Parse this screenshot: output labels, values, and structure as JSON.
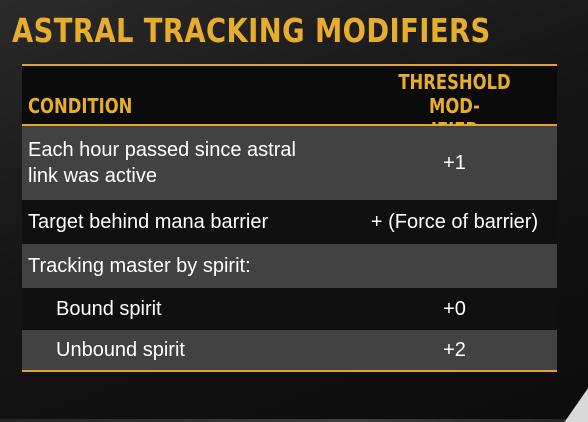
{
  "title": "ASTRAL TRACKING MODIFIERS",
  "columns": {
    "condition": "CONDITION",
    "modifier_line1": "THRESHOLD MOD-",
    "modifier_line2": "IFIER"
  },
  "rows": [
    {
      "condition_line1": "Each hour passed since astral",
      "condition_line2": "link was active",
      "modifier": "+1"
    },
    {
      "condition": "Target behind mana barrier",
      "modifier": "+ (Force of barrier)"
    },
    {
      "condition": "Tracking master by spirit:",
      "modifier": ""
    },
    {
      "condition": "Bound spirit",
      "modifier": "+0"
    },
    {
      "condition": "Unbound spirit",
      "modifier": "+2"
    }
  ],
  "colors": {
    "accent": "#e7ad2c",
    "row_shaded": "#424242",
    "row_plain": "#101010",
    "panel": "#151515"
  }
}
